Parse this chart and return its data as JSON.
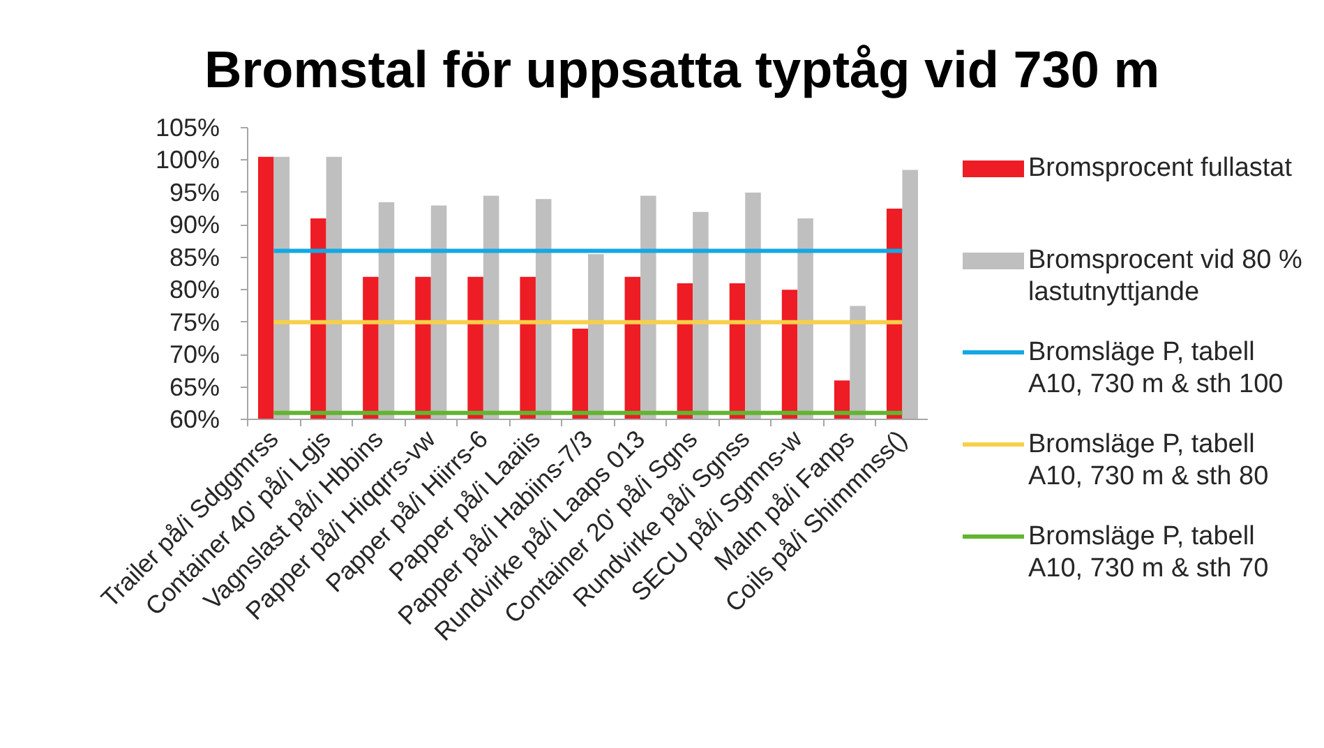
{
  "chart_data": {
    "type": "bar",
    "title": "Bromstal för uppsatta typtåg vid 730 m",
    "categories": [
      "Trailer på/i Sdggmrss",
      "Container 40' på/i Lgjs",
      "Vagnslast på/i Hbbins",
      "Papper på/i Hiqqrrs-vw",
      "Papper på/i Hiirrs-6",
      "Papper på/i Laaiis",
      "Papper på/i Habiins-7/3",
      "Rundvirke på/i Laaps 013",
      "Container 20' på/i Sgns",
      "Rundvirke på/i Sgnss",
      "SECU på/i Sgmns-w",
      "Malm på/i Fanps",
      "Coils på/i Shimmnss()"
    ],
    "series": [
      {
        "name": "Bromsprocent fullastat",
        "color": "#ee1c24",
        "values": [
          100.5,
          91,
          82,
          82,
          82,
          82,
          74,
          82,
          81,
          81,
          80,
          66,
          92.5
        ]
      },
      {
        "name": "Bromsprocent vid 80 % lastutnyttjande",
        "color": "#bfbfbf",
        "values": [
          100.5,
          100.5,
          93.5,
          93,
          94.5,
          94,
          85.5,
          94.5,
          92,
          95,
          91,
          77.5,
          98.5
        ]
      },
      {
        "name": "Bromsläge P, tabell A10, 730 m & sth 100",
        "type": "line",
        "color": "#13a8e4",
        "values": [
          86,
          86,
          86,
          86,
          86,
          86,
          86,
          86,
          86,
          86,
          86,
          86,
          86
        ]
      },
      {
        "name": "Bromsläge P, tabell A10, 730 m & sth 80",
        "type": "line",
        "color": "#f7cf4a",
        "values": [
          75,
          75,
          75,
          75,
          75,
          75,
          75,
          75,
          75,
          75,
          75,
          75,
          75
        ]
      },
      {
        "name": "Bromsläge P, tabell A10, 730 m & sth 70",
        "type": "line",
        "color": "#62b530",
        "values": [
          61,
          61,
          61,
          61,
          61,
          61,
          61,
          61,
          61,
          61,
          61,
          61,
          61
        ]
      }
    ],
    "ylim": [
      60,
      105
    ],
    "yticks": [
      {
        "value": 60,
        "label": "60%"
      },
      {
        "value": 65,
        "label": "65%"
      },
      {
        "value": 70,
        "label": "70%"
      },
      {
        "value": 75,
        "label": "75%"
      },
      {
        "value": 80,
        "label": "80%"
      },
      {
        "value": 85,
        "label": "85%"
      },
      {
        "value": 90,
        "label": "90%"
      },
      {
        "value": 95,
        "label": "95%"
      },
      {
        "value": 100,
        "label": "100%"
      },
      {
        "value": 105,
        "label": "105%"
      }
    ],
    "grid": false,
    "legend": "right"
  }
}
